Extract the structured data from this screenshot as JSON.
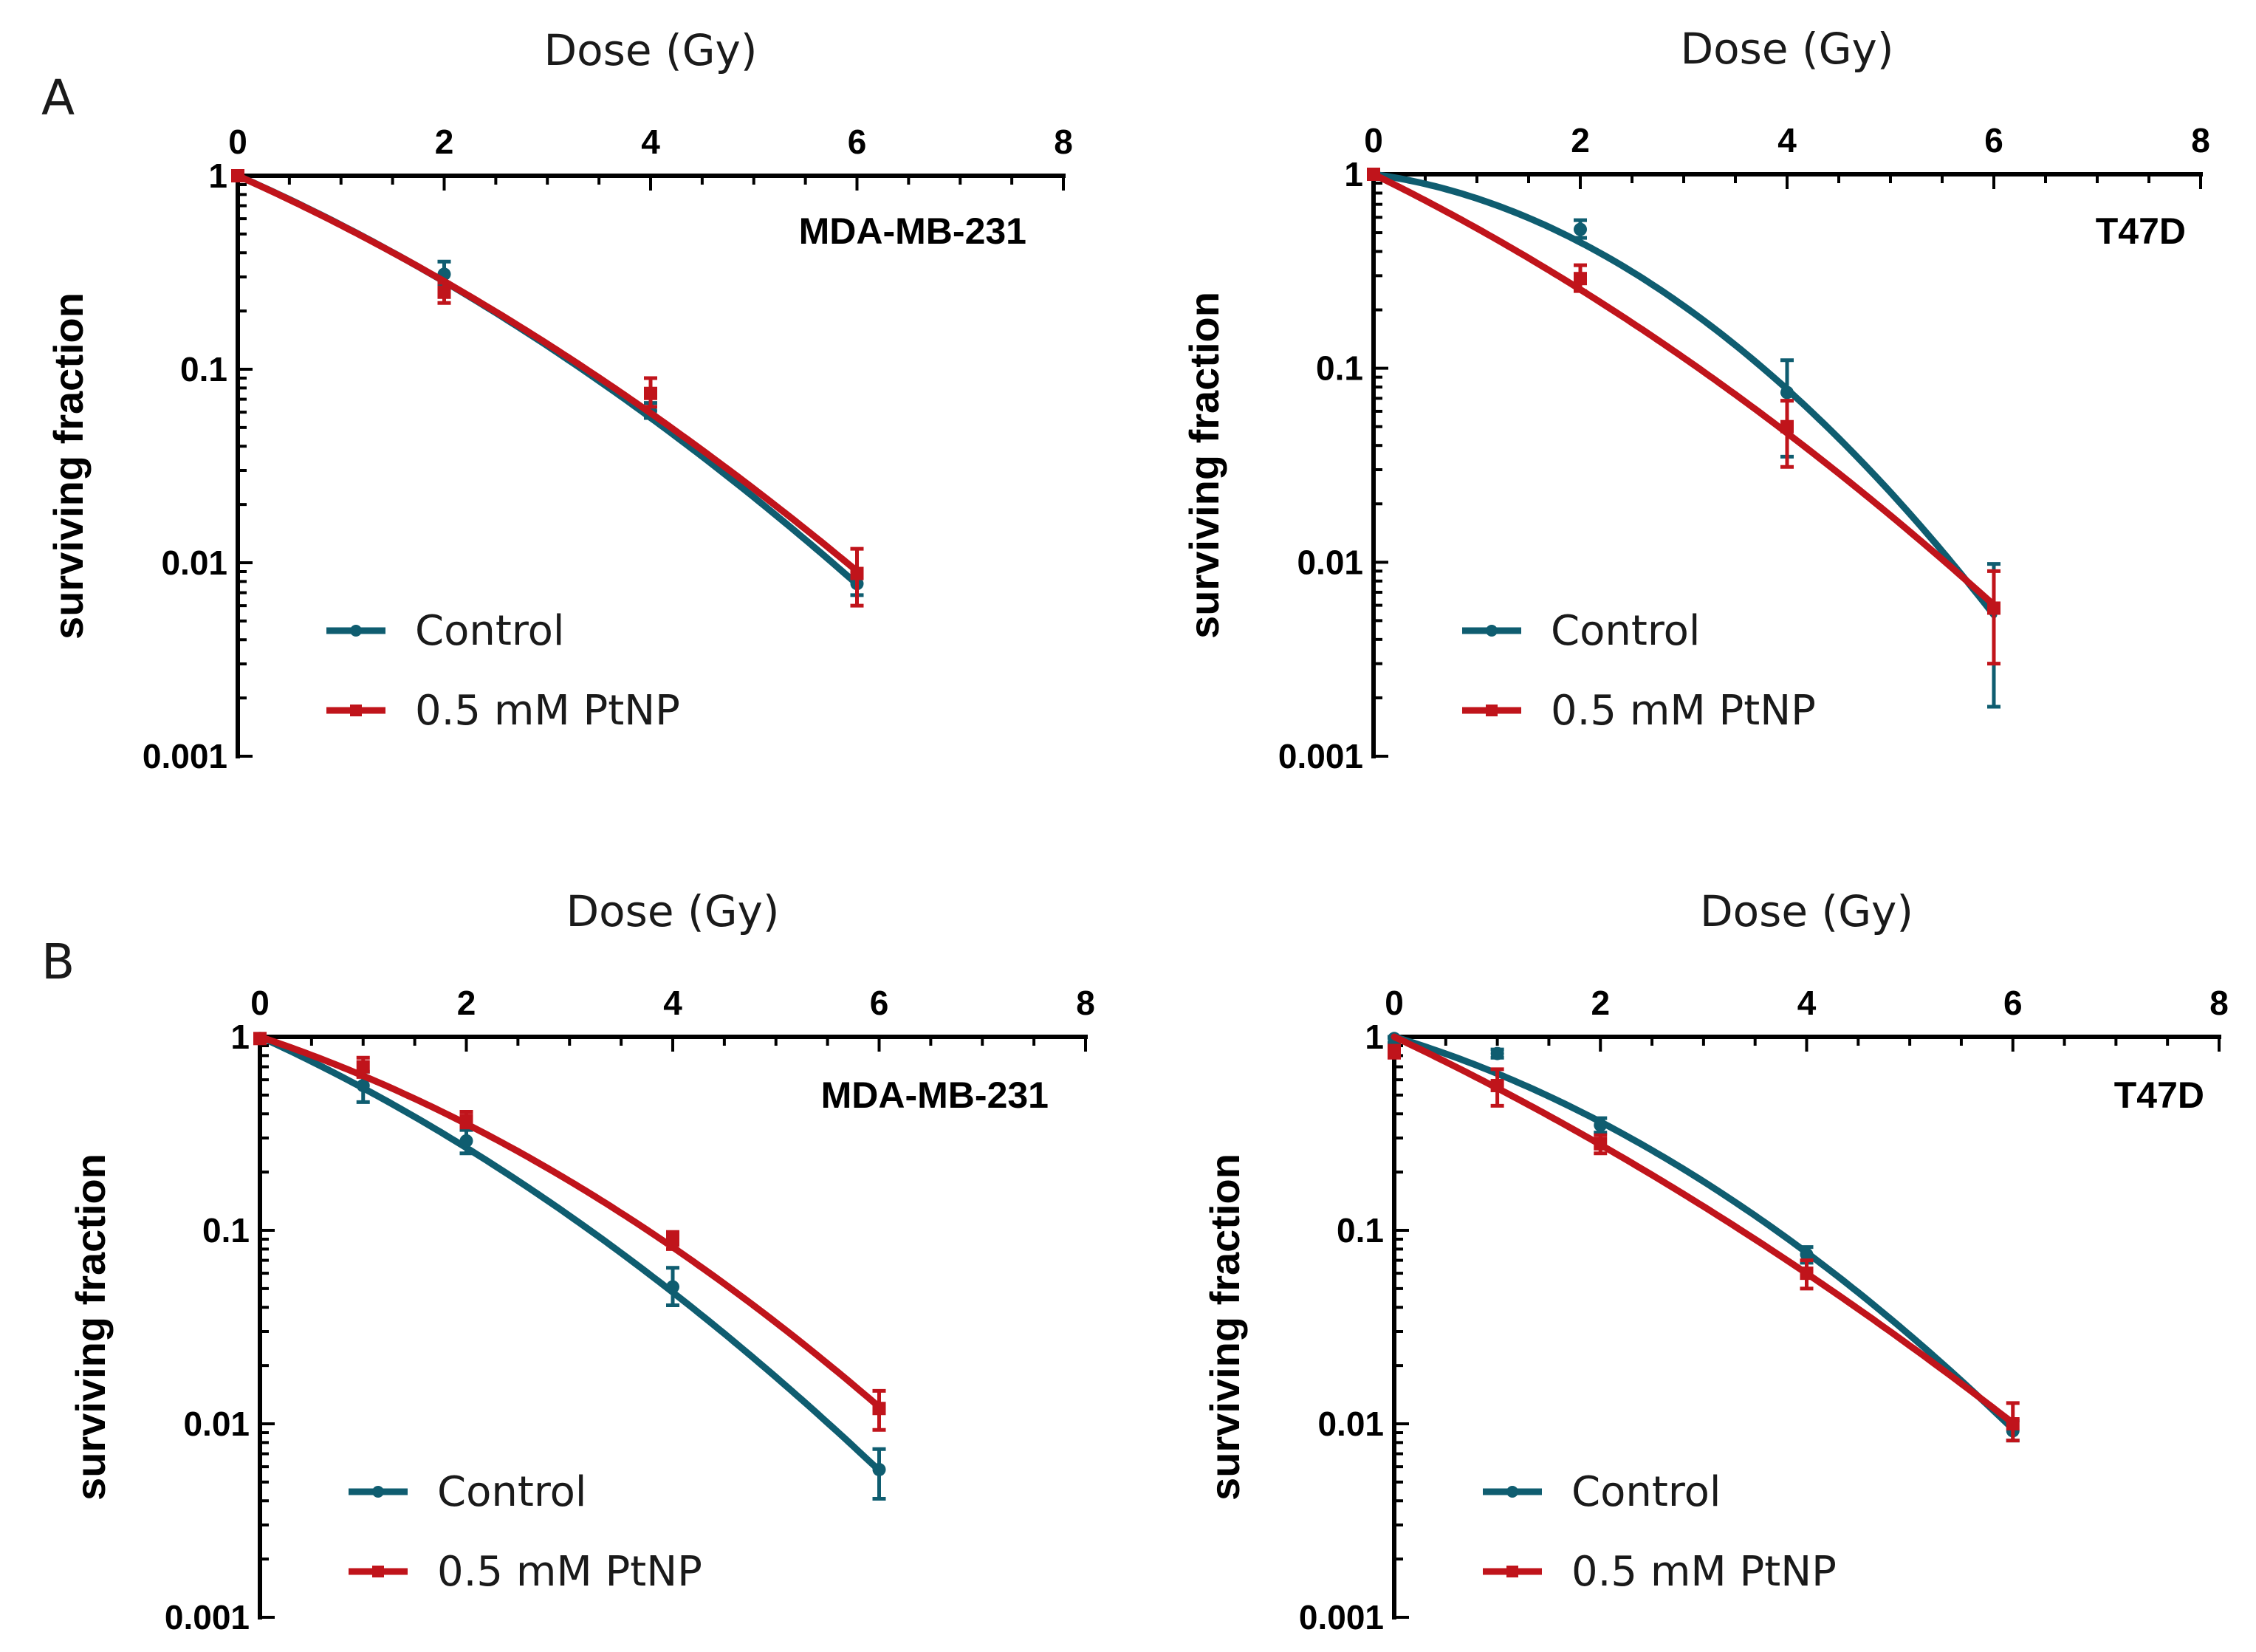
{
  "colors": {
    "control": "#0f5d70",
    "ptnp": "#c0141b",
    "axis": "#000000"
  },
  "figure_labels": {
    "panel_a": "A",
    "panel_b": "B"
  },
  "chart_data": [
    {
      "type": "line",
      "panel": "A",
      "title": "MDA-MB-231",
      "xlabel": "Dose (Gy)",
      "ylabel": "surviving fraction",
      "xlim": [
        0,
        8
      ],
      "ylim": [
        0.001,
        1
      ],
      "yscale": "log",
      "x_ticks": [
        "0",
        "2",
        "4",
        "6",
        "8"
      ],
      "y_ticks": [
        "1",
        "0.1",
        "0.01",
        "0.001"
      ],
      "legend_position": "bottom-left",
      "series": [
        {
          "name": "Control",
          "color_key": "control",
          "x": [
            0,
            2,
            4,
            6
          ],
          "y": [
            1.0,
            0.31,
            0.061,
            0.0078
          ],
          "y_err_low": [
            0.97,
            0.27,
            0.056,
            0.0068
          ],
          "y_err_high": [
            1.0,
            0.36,
            0.067,
            0.0092
          ],
          "fit": {
            "alpha": 0.54,
            "beta": 0.045
          }
        },
        {
          "name": "0.5 mM PtNP",
          "color_key": "ptnp",
          "x": [
            0,
            2,
            4,
            6
          ],
          "y": [
            1.0,
            0.25,
            0.075,
            0.0088
          ],
          "y_err_low": [
            0.97,
            0.22,
            0.064,
            0.006
          ],
          "y_err_high": [
            1.0,
            0.28,
            0.09,
            0.0118
          ],
          "fit": {
            "alpha": 0.55,
            "beta": 0.039
          }
        }
      ]
    },
    {
      "type": "line",
      "panel": "A",
      "title": "T47D",
      "xlabel": "Dose (Gy)",
      "ylabel": "surviving fraction",
      "xlim": [
        0,
        8
      ],
      "ylim": [
        0.001,
        1
      ],
      "yscale": "log",
      "x_ticks": [
        "0",
        "2",
        "4",
        "6",
        "8"
      ],
      "y_ticks": [
        "1",
        "0.1",
        "0.01",
        "0.001"
      ],
      "legend_position": "bottom-left",
      "series": [
        {
          "name": "Control",
          "color_key": "control",
          "x": [
            0,
            2,
            4,
            6
          ],
          "y": [
            1.0,
            0.52,
            0.075,
            0.0058
          ],
          "y_err_low": [
            0.97,
            0.47,
            0.035,
            0.0018
          ],
          "y_err_high": [
            1.0,
            0.58,
            0.11,
            0.0098
          ],
          "fit": {
            "alpha": 0.17,
            "beta": 0.117
          }
        },
        {
          "name": "0.5 mM PtNP",
          "color_key": "ptnp",
          "x": [
            0,
            2,
            4,
            6
          ],
          "y": [
            1.0,
            0.29,
            0.05,
            0.0058
          ],
          "y_err_low": [
            0.97,
            0.25,
            0.031,
            0.003
          ],
          "y_err_high": [
            1.0,
            0.34,
            0.068,
            0.009
          ],
          "fit": {
            "alpha": 0.6,
            "beta": 0.042
          }
        }
      ]
    },
    {
      "type": "line",
      "panel": "B",
      "title": "MDA-MB-231",
      "xlabel": "Dose (Gy)",
      "ylabel": "surviving fraction",
      "xlim": [
        0,
        8
      ],
      "ylim": [
        0.001,
        1
      ],
      "yscale": "log",
      "x_ticks": [
        "0",
        "2",
        "4",
        "6",
        "8"
      ],
      "y_ticks": [
        "1",
        "0.1",
        "0.01",
        "0.001"
      ],
      "legend_position": "bottom-left",
      "series": [
        {
          "name": "Control",
          "color_key": "control",
          "x": [
            0,
            1,
            2,
            4,
            6
          ],
          "y": [
            0.98,
            0.56,
            0.29,
            0.051,
            0.0058
          ],
          "y_err_low": [
            0.93,
            0.46,
            0.25,
            0.041,
            0.0041
          ],
          "y_err_high": [
            1.0,
            0.66,
            0.33,
            0.064,
            0.0074
          ],
          "fit": {
            "alpha": 0.56,
            "beta": 0.05
          }
        },
        {
          "name": "0.5 mM PtNP",
          "color_key": "ptnp",
          "x": [
            0,
            1,
            2,
            4,
            6
          ],
          "y": [
            0.98,
            0.7,
            0.37,
            0.089,
            0.012
          ],
          "y_err_low": [
            0.93,
            0.62,
            0.34,
            0.08,
            0.0093
          ],
          "y_err_high": [
            1.0,
            0.78,
            0.41,
            0.098,
            0.0148
          ],
          "fit": {
            "alpha": 0.41,
            "beta": 0.054
          }
        }
      ]
    },
    {
      "type": "line",
      "panel": "B",
      "title": "T47D",
      "xlabel": "Dose (Gy)",
      "ylabel": "surviving fraction",
      "xlim": [
        0,
        8
      ],
      "ylim": [
        0.001,
        1
      ],
      "yscale": "log",
      "x_ticks": [
        "0",
        "2",
        "4",
        "6",
        "8"
      ],
      "y_ticks": [
        "1",
        "0.1",
        "0.01",
        "0.001"
      ],
      "legend_position": "bottom-left",
      "series": [
        {
          "name": "Control",
          "color_key": "control",
          "x": [
            0,
            1,
            2,
            4,
            6
          ],
          "y": [
            0.98,
            0.82,
            0.35,
            0.075,
            0.0092
          ],
          "y_err_low": [
            0.93,
            0.78,
            0.32,
            0.068,
            0.0082
          ],
          "y_err_high": [
            1.0,
            0.86,
            0.38,
            0.082,
            0.0104
          ],
          "fit": {
            "alpha": 0.37,
            "beta": 0.068
          }
        },
        {
          "name": "0.5 mM PtNP",
          "color_key": "ptnp",
          "x": [
            0,
            1,
            2,
            4,
            6
          ],
          "y": [
            0.84,
            0.56,
            0.28,
            0.06,
            0.01
          ],
          "y_err_low": [
            0.78,
            0.44,
            0.25,
            0.05,
            0.0082
          ],
          "y_err_high": [
            0.9,
            0.68,
            0.31,
            0.07,
            0.0128
          ],
          "fit": {
            "alpha": 0.58,
            "beta": 0.031
          }
        }
      ]
    }
  ]
}
